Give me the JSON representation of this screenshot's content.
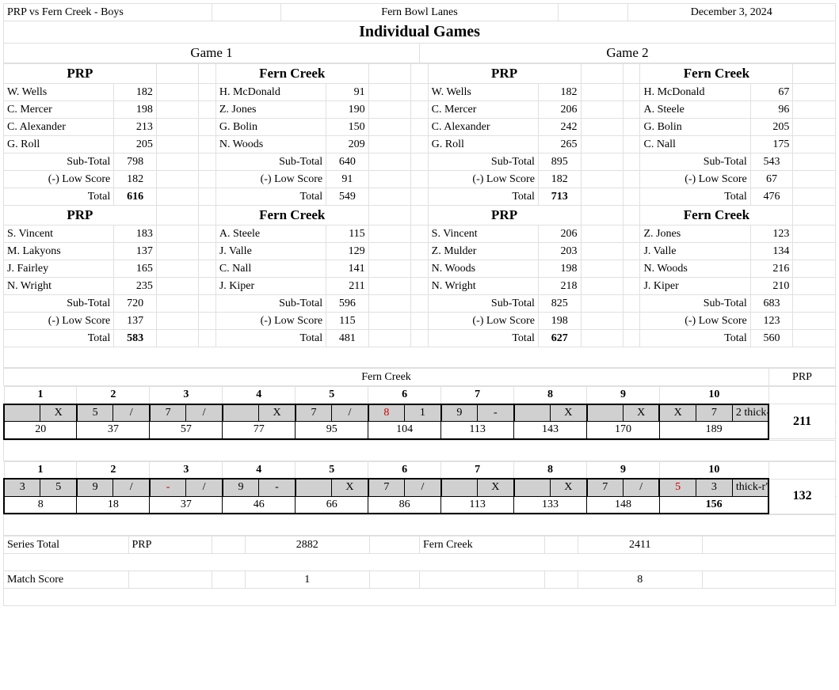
{
  "header": {
    "match": "PRP vs Fern Creek - Boys",
    "venue": "Fern Bowl Lanes",
    "date": "December 3, 2024",
    "title": "Individual Games"
  },
  "games": {
    "g1": "Game 1",
    "g2": "Game 2"
  },
  "teams": {
    "prp": "PRP",
    "fc": "Fern Creek"
  },
  "labels": {
    "sub": "Sub-Total",
    "low": "(-) Low Score",
    "total": "Total",
    "series": "Series Total",
    "match": "Match Score"
  },
  "g1_prp_a": {
    "p": [
      "W. Wells",
      "C. Mercer",
      "C. Alexander",
      "G. Roll"
    ],
    "s": [
      "182",
      "198",
      "213",
      "205"
    ],
    "sub": "798",
    "low": "182",
    "tot": "616"
  },
  "g1_fc_a": {
    "p": [
      "H. McDonald",
      "Z. Jones",
      "G. Bolin",
      "N. Woods"
    ],
    "s": [
      "91",
      "190",
      "150",
      "209"
    ],
    "sub": "640",
    "low": "91",
    "tot": "549"
  },
  "g2_prp_a": {
    "p": [
      "W. Wells",
      "C. Mercer",
      "C. Alexander",
      "G. Roll"
    ],
    "s": [
      "182",
      "206",
      "242",
      "265"
    ],
    "sub": "895",
    "low": "182",
    "tot": "713"
  },
  "g2_fc_a": {
    "p": [
      "H. McDonald",
      "A. Steele",
      "G. Bolin",
      "C. Nall"
    ],
    "s": [
      "67",
      "96",
      "205",
      "175"
    ],
    "sub": "543",
    "low": "67",
    "tot": "476"
  },
  "g1_prp_b": {
    "p": [
      "S. Vincent",
      "M. Lakyons",
      "J. Fairley",
      "N. Wright"
    ],
    "s": [
      "183",
      "137",
      "165",
      "235"
    ],
    "sub": "720",
    "low": "137",
    "tot": "583"
  },
  "g1_fc_b": {
    "p": [
      "A. Steele",
      "J. Valle",
      "C. Nall",
      "J. Kiper"
    ],
    "s": [
      "115",
      "129",
      "141",
      "211"
    ],
    "sub": "596",
    "low": "115",
    "tot": "481"
  },
  "g2_prp_b": {
    "p": [
      "S. Vincent",
      "Z. Mulder",
      "N. Woods",
      "N. Wright"
    ],
    "s": [
      "206",
      "203",
      "198",
      "218"
    ],
    "sub": "825",
    "low": "198",
    "tot": "627"
  },
  "g2_fc_b": {
    "p": [
      "Z. Jones",
      "J. Valle",
      "N. Woods",
      "J. Kiper"
    ],
    "s": [
      "123",
      "134",
      "216",
      "210"
    ],
    "sub": "683",
    "low": "123",
    "tot": "560"
  },
  "scoreline1": {
    "team": "Fern Creek",
    "opp": "PRP",
    "frames": [
      "1",
      "2",
      "3",
      "4",
      "5",
      "6",
      "7",
      "8",
      "9",
      "10"
    ],
    "balls": [
      [
        "",
        "X"
      ],
      [
        "5",
        "/"
      ],
      [
        "7",
        "/"
      ],
      [
        "",
        "X"
      ],
      [
        "7",
        "/"
      ],
      [
        "8",
        "1"
      ],
      [
        "9",
        "-"
      ],
      [
        "",
        "X"
      ],
      [
        "",
        "X"
      ],
      [
        "X",
        "7",
        "2"
      ]
    ],
    "red_balls": {
      "5_0": true
    },
    "cum": [
      "20",
      "37",
      "57",
      "77",
      "95",
      "104",
      "113",
      "143",
      "170",
      "189"
    ],
    "total": "211"
  },
  "scoreline2": {
    "frames": [
      "1",
      "2",
      "3",
      "4",
      "5",
      "6",
      "7",
      "8",
      "9",
      "10"
    ],
    "balls": [
      [
        "3",
        "5"
      ],
      [
        "9",
        "/"
      ],
      [
        "-",
        "/"
      ],
      [
        "9",
        "-"
      ],
      [
        "",
        "X"
      ],
      [
        "7",
        "/"
      ],
      [
        "",
        "X"
      ],
      [
        "",
        "X"
      ],
      [
        "7",
        "/"
      ],
      [
        "5",
        "3",
        ""
      ]
    ],
    "red_balls": {
      "2_0": true,
      "9_0": true
    },
    "cum": [
      "8",
      "18",
      "37",
      "46",
      "66",
      "86",
      "113",
      "133",
      "148",
      "156"
    ],
    "cum_bold": {
      "9": true
    },
    "total": "132"
  },
  "series": {
    "prp": "2882",
    "fc": "2411"
  },
  "matchscore": {
    "prp": "1",
    "fc": "8"
  }
}
